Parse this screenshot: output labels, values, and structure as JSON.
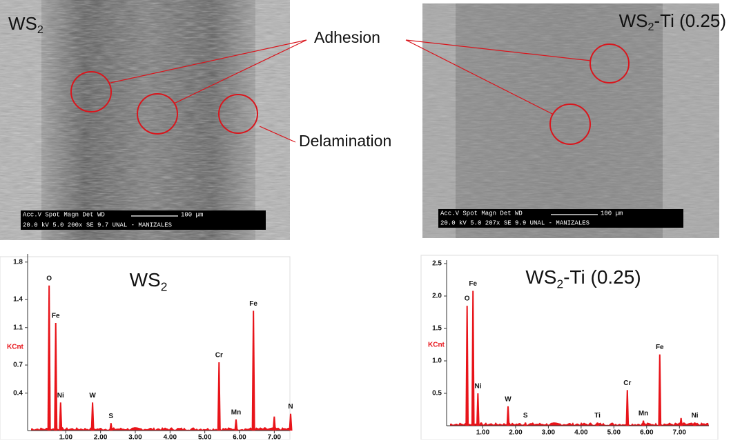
{
  "sem_images": [
    {
      "title": "WS",
      "title_sub": "2",
      "title_rest": null,
      "info_head": "Acc.V  Spot Magn   Det  WD",
      "scale": "100 µm",
      "info_values": "20.0 kV 5.0  200x   SE  9.7   UNAL - MANIZALES"
    },
    {
      "title": "WS",
      "title_sub": "2",
      "title_rest": "-Ti (0.25)",
      "info_head": "Acc.V  Spot Magn   Det  WD",
      "scale": "100 µm",
      "info_values": "20.0 kV 5.0  207x   SE  9.9   UNAL - MANIZALES"
    }
  ],
  "annotations": {
    "adhesion": "Adhesion",
    "delamination": "Delamination"
  },
  "chart_data": [
    {
      "type": "spectrum",
      "title": "WS",
      "title_sub": "2",
      "title_rest": null,
      "y_label": "KCnt",
      "color": "#e8141a",
      "x": [
        0.52,
        0.71,
        0.85,
        1.77,
        2.3,
        5.41,
        5.9,
        6.4,
        7.0,
        7.47
      ],
      "values": [
        1.55,
        1.15,
        0.3,
        0.3,
        0.08,
        0.73,
        0.12,
        1.28,
        0.15,
        0.18
      ],
      "peak_labels": [
        "O",
        "Fe",
        "Ni",
        "W",
        "S",
        "Cr",
        "Mn",
        "Fe",
        null,
        "N"
      ],
      "xlim": [
        0,
        7.45
      ],
      "ylim": [
        0,
        1.85
      ],
      "xticks": [
        {
          "value": 1,
          "label": "1.00"
        },
        {
          "value": 2,
          "label": "2.00"
        },
        {
          "value": 3,
          "label": "3.00"
        },
        {
          "value": 4,
          "label": "4.00"
        },
        {
          "value": 5,
          "label": "5.00"
        },
        {
          "value": 6,
          "label": "6.00"
        },
        {
          "value": 7,
          "label": "7.00"
        }
      ],
      "yticks": [
        0.4,
        0.7,
        1.1,
        1.4,
        1.8
      ]
    },
    {
      "type": "spectrum",
      "title": "WS",
      "title_sub": "2",
      "title_rest": "-Ti (0.25)",
      "y_label": "KCnt",
      "color": "#e8141a",
      "x": [
        0.52,
        0.7,
        0.85,
        1.77,
        2.3,
        4.5,
        5.41,
        5.9,
        6.4,
        7.05,
        7.47
      ],
      "values": [
        1.85,
        2.08,
        0.5,
        0.3,
        0.05,
        0.05,
        0.55,
        0.08,
        1.1,
        0.12,
        0.05
      ],
      "peak_labels": [
        "O",
        "Fe",
        "Ni",
        "W",
        "S",
        "Ti",
        "Cr",
        "Mn",
        "Fe",
        null,
        "Ni"
      ],
      "xlim": [
        0,
        7.9
      ],
      "ylim": [
        0,
        2.5
      ],
      "xticks": [
        {
          "value": 1,
          "label": "1.00"
        },
        {
          "value": 2,
          "label": "2.00"
        },
        {
          "value": 3,
          "label": "3.00"
        },
        {
          "value": 4,
          "label": "4.00"
        },
        {
          "value": 5,
          "label": "5.00"
        },
        {
          "value": 6,
          "label": "6.00"
        },
        {
          "value": 7,
          "label": "7.00"
        }
      ],
      "yticks": [
        0.5,
        {
          "value": 1,
          "label": "1.0"
        },
        1.5,
        {
          "value": 2,
          "label": "2.0"
        },
        2.5
      ]
    }
  ]
}
